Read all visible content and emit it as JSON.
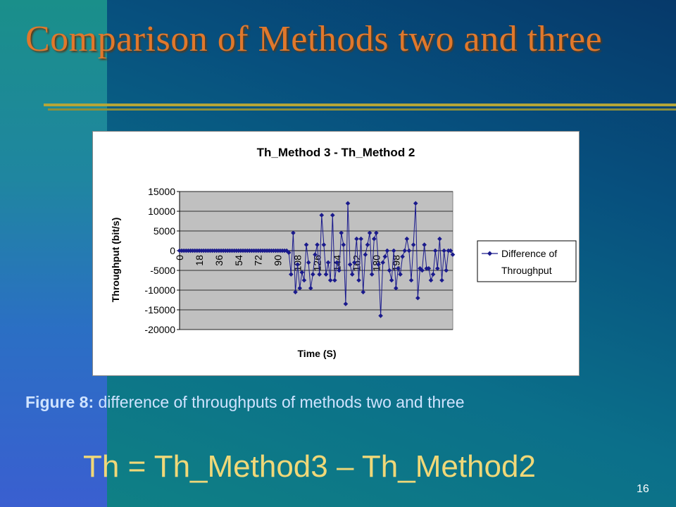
{
  "slide": {
    "title": "Comparison of Methods two and three",
    "caption_label": "Figure 8:",
    "caption_text": "difference of throughputs of methods two and three",
    "formula": "Th = Th_Method3 – Th_Method2",
    "page_number": "16"
  },
  "colors": {
    "title": "#e0782c",
    "series": "#1a1a8c",
    "plot_bg": "#c0c0c0"
  },
  "chart_data": {
    "type": "line",
    "title": "Th_Method 3 - Th_Method 2",
    "xlabel": "Time (S)",
    "ylabel": "Throughput (bit/s)",
    "ylim": [
      -20000,
      15000
    ],
    "yticks": [
      15000,
      10000,
      5000,
      0,
      -5000,
      -10000,
      -15000,
      -20000
    ],
    "ytick_labels": [
      "15000",
      "10000",
      "5000",
      "0",
      "-5000",
      "-10000",
      "-15000",
      "-20000"
    ],
    "xtick_labels": [
      "0",
      "18",
      "36",
      "54",
      "72",
      "90",
      "108",
      "126",
      "144",
      "162",
      "180",
      "198"
    ],
    "x_step": 2,
    "legend": "right",
    "series": [
      {
        "name": "Difference of Throughput",
        "marker": "diamond",
        "values": [
          0,
          0,
          0,
          0,
          0,
          0,
          0,
          0,
          0,
          0,
          0,
          0,
          0,
          0,
          0,
          0,
          0,
          0,
          0,
          0,
          0,
          0,
          0,
          0,
          0,
          0,
          0,
          0,
          0,
          0,
          0,
          0,
          0,
          0,
          0,
          0,
          0,
          0,
          0,
          0,
          0,
          0,
          0,
          0,
          0,
          0,
          0,
          0,
          0,
          0,
          -500,
          -6000,
          4500,
          -10500,
          -3500,
          -9500,
          -5500,
          -7500,
          1500,
          -3000,
          -9500,
          -6000,
          -1000,
          1500,
          -6000,
          9000,
          1500,
          -6000,
          -3000,
          -7500,
          9000,
          -7500,
          -3000,
          -5000,
          4500,
          1500,
          -13500,
          12000,
          -3500,
          -6000,
          -3000,
          3000,
          -7500,
          3000,
          -10500,
          -1000,
          1500,
          4500,
          -6000,
          3000,
          4500,
          -3500,
          -16500,
          -3000,
          -1500,
          0,
          -5000,
          -7500,
          0,
          -9500,
          -4500,
          -6000,
          -1500,
          0,
          3000,
          0,
          -7500,
          1500,
          12000,
          -12000,
          -4500,
          -5000,
          1500,
          -4500,
          -4500,
          -7500,
          -6000,
          0,
          -4500,
          3000,
          -7500,
          0,
          -5000,
          0,
          0,
          -1000
        ]
      }
    ]
  }
}
